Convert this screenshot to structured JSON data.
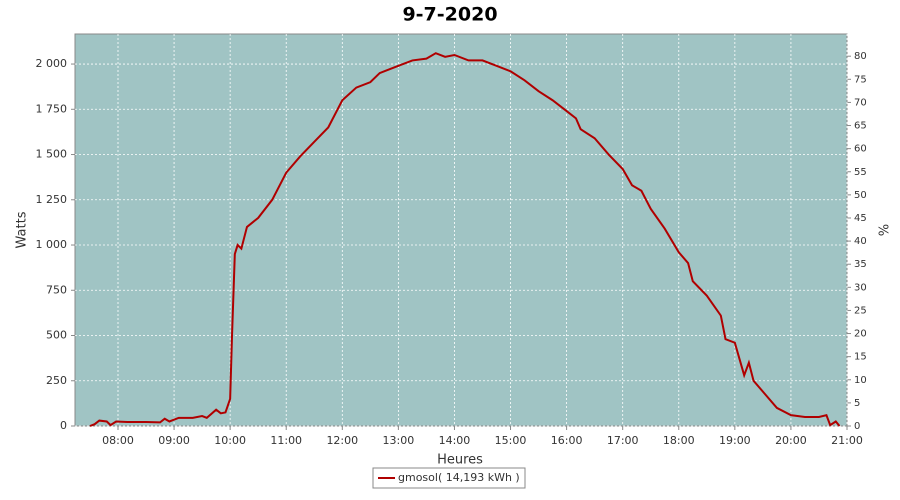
{
  "chart_data": {
    "type": "line",
    "title": "9-7-2020",
    "x_label": "Heures",
    "y_label": "Watts",
    "y2_label": "%",
    "x": [
      "07:30",
      "07:35",
      "07:40",
      "07:48",
      "07:52",
      "07:58",
      "08:10",
      "08:30",
      "08:45",
      "08:50",
      "08:55",
      "09:05",
      "09:20",
      "09:30",
      "09:35",
      "09:45",
      "09:50",
      "09:55",
      "10:00",
      "10:02",
      "10:05",
      "10:08",
      "10:12",
      "10:18",
      "10:30",
      "10:45",
      "11:00",
      "11:15",
      "11:30",
      "11:45",
      "12:00",
      "12:15",
      "12:30",
      "12:40",
      "12:50",
      "13:00",
      "13:15",
      "13:30",
      "13:40",
      "13:50",
      "14:00",
      "14:15",
      "14:30",
      "14:45",
      "15:00",
      "15:15",
      "15:30",
      "15:45",
      "16:00",
      "16:10",
      "16:15",
      "16:30",
      "16:45",
      "17:00",
      "17:10",
      "17:20",
      "17:30",
      "17:45",
      "18:00",
      "18:10",
      "18:15",
      "18:30",
      "18:45",
      "18:50",
      "19:00",
      "19:05",
      "19:10",
      "19:15",
      "19:20",
      "19:30",
      "19:45",
      "20:00",
      "20:15",
      "20:30",
      "20:38",
      "20:42",
      "20:48",
      "20:52"
    ],
    "series": [
      {
        "name": "gmosol( 14,193 kWh )",
        "color": "#b00000",
        "values": [
          0,
          10,
          30,
          25,
          5,
          25,
          22,
          22,
          20,
          40,
          25,
          45,
          45,
          55,
          45,
          90,
          70,
          75,
          150,
          500,
          950,
          1000,
          980,
          1100,
          1150,
          1250,
          1400,
          1490,
          1570,
          1650,
          1800,
          1870,
          1900,
          1950,
          1970,
          1990,
          2020,
          2030,
          2060,
          2040,
          2050,
          2020,
          2020,
          1990,
          1960,
          1910,
          1850,
          1800,
          1740,
          1700,
          1640,
          1590,
          1500,
          1420,
          1330,
          1300,
          1200,
          1090,
          960,
          900,
          800,
          720,
          610,
          480,
          460,
          370,
          280,
          350,
          250,
          190,
          100,
          60,
          50,
          50,
          60,
          5,
          25,
          0
        ]
      }
    ],
    "xlim": [
      "07:14",
      "21:00"
    ],
    "xticks": [
      "08:00",
      "09:00",
      "10:00",
      "11:00",
      "12:00",
      "13:00",
      "14:00",
      "15:00",
      "16:00",
      "17:00",
      "18:00",
      "19:00",
      "20:00",
      "21:00"
    ],
    "ylim": [
      0,
      2166
    ],
    "yticks": [
      0,
      250,
      500,
      750,
      {
        "value": 1000,
        "label": "1 000"
      },
      {
        "value": 1250,
        "label": "1 250"
      },
      {
        "value": 1500,
        "label": "1 500"
      },
      {
        "value": 1750,
        "label": "1 750"
      },
      {
        "value": 2000,
        "label": "2 000"
      }
    ],
    "y2lim": [
      0,
      84.8
    ],
    "y2ticks": [
      0,
      5,
      10,
      15,
      20,
      25,
      30,
      35,
      40,
      45,
      50,
      55,
      60,
      65,
      70,
      75,
      80
    ],
    "grid": true,
    "plot_background": "#a0c4c4",
    "legend": "bottom"
  }
}
